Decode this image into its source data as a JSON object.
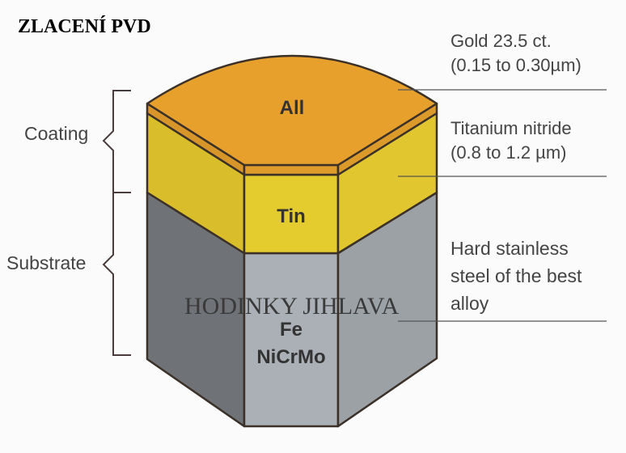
{
  "title": "ZLACENÍ PVD",
  "watermark": "HODINKY JIHLAVA",
  "brackets": {
    "coating": "Coating",
    "substrate": "Substrate"
  },
  "layers": {
    "top": "All",
    "middle": "Tin",
    "bottom_line1": "Fe",
    "bottom_line2": "NiCrMo"
  },
  "annotations": {
    "gold_line1": "Gold 23.5 ct.",
    "gold_line2": "(0.15 to 0.30µm)",
    "tin_line1": "Titanium nitride",
    "tin_line2": "(0.8 to 1.2 µm)",
    "steel_line1": "Hard stainless",
    "steel_line2": "steel of the best",
    "steel_line3": "alloy"
  },
  "colors": {
    "gold": "#e8a02c",
    "tin": "#e2c52c",
    "steel_front": "#a9aeb3",
    "steel_left": "#6d7074",
    "steel_right": "#9a9fa4"
  }
}
